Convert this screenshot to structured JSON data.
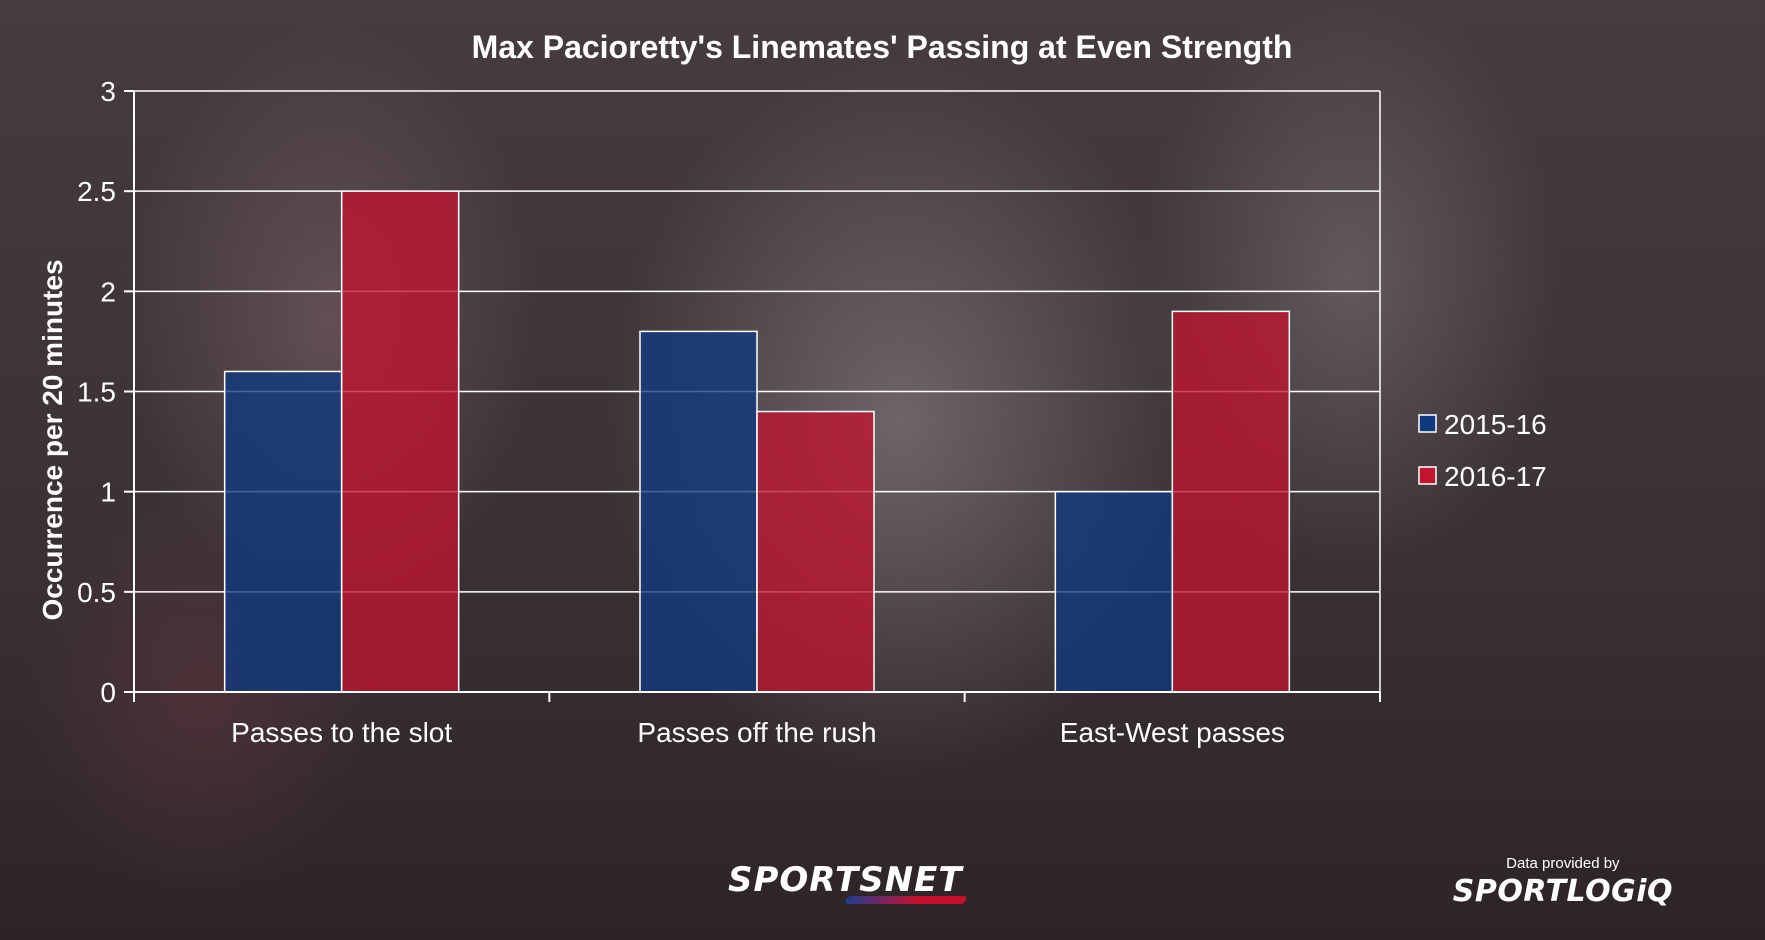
{
  "chart_data": {
    "type": "bar",
    "title": "Max Pacioretty's Linemates' Passing at Even Strength",
    "ylabel": "Occurrence per 20 minutes",
    "xlabel": "",
    "ylim": [
      0,
      3
    ],
    "yticks": [
      0,
      0.5,
      1,
      1.5,
      2,
      2.5,
      3
    ],
    "ytick_labels": [
      "0",
      "0.5",
      "1",
      "1.5",
      "2",
      "2.5",
      "3"
    ],
    "grid": true,
    "legend_position": "right",
    "categories": [
      "Passes to the slot",
      "Passes off the rush",
      "East-West passes"
    ],
    "series": [
      {
        "name": "2015-16",
        "color": "#0f3a80",
        "values": [
          1.6,
          1.8,
          1.0
        ]
      },
      {
        "name": "2016-17",
        "color": "#c0142f",
        "values": [
          2.5,
          1.4,
          1.9
        ]
      }
    ]
  },
  "branding": {
    "publisher_logo": "SPORTSNET",
    "provider_caption": "Data provided by",
    "provider_logo": "SPORTLOGiQ"
  }
}
